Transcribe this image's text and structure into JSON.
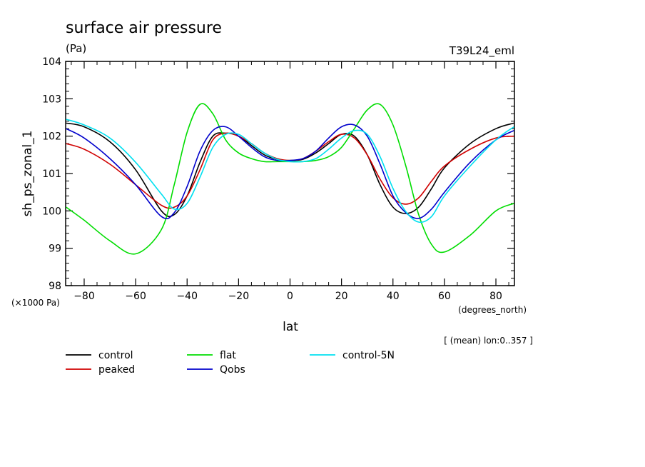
{
  "chart_data": {
    "type": "line",
    "title": "surface air pressure",
    "units_label": "(Pa)",
    "model_label": "T39L24_eml",
    "ylabel": "sh_ps_zonal_1",
    "xlabel": "lat",
    "x_units": "(degrees_north)",
    "y_scale_label": "(×1000 Pa)",
    "mean_note": "[ (mean) lon:0..357 ]",
    "xlim": [
      -87.2,
      87.2
    ],
    "ylim": [
      98,
      104
    ],
    "x_ticks": [
      -80,
      -60,
      -40,
      -20,
      0,
      20,
      40,
      60,
      80
    ],
    "x_tick_labels": [
      "−80",
      "−60",
      "−40",
      "−20",
      "0",
      "20",
      "40",
      "60",
      "80"
    ],
    "y_ticks": [
      98,
      99,
      100,
      101,
      102,
      103,
      104
    ],
    "y_tick_labels": [
      "98",
      "99",
      "100",
      "101",
      "102",
      "103",
      "104"
    ],
    "x": [
      -87,
      -80,
      -70,
      -60,
      -50,
      -45,
      -40,
      -35,
      -30,
      -25,
      -20,
      -15,
      -10,
      -5,
      0,
      5,
      10,
      15,
      20,
      25,
      30,
      35,
      40,
      45,
      50,
      55,
      60,
      70,
      80,
      87
    ],
    "series": [
      {
        "name": "control",
        "color": "#000000",
        "values": [
          102.35,
          102.25,
          101.85,
          101.1,
          100.0,
          99.9,
          100.4,
          101.3,
          102.0,
          102.08,
          102.0,
          101.75,
          101.5,
          101.38,
          101.35,
          101.38,
          101.55,
          101.8,
          102.05,
          102.0,
          101.5,
          100.7,
          100.1,
          99.93,
          100.1,
          100.6,
          101.15,
          101.8,
          102.2,
          102.35
        ]
      },
      {
        "name": "peaked",
        "color": "#d00000",
        "values": [
          101.8,
          101.65,
          101.25,
          100.7,
          100.15,
          100.1,
          100.4,
          101.1,
          101.9,
          102.08,
          102.0,
          101.8,
          101.55,
          101.4,
          101.35,
          101.4,
          101.6,
          101.85,
          102.05,
          101.95,
          101.5,
          100.85,
          100.35,
          100.18,
          100.35,
          100.8,
          101.2,
          101.65,
          101.95,
          102.0
        ]
      },
      {
        "name": "flat",
        "color": "#00dd00",
        "values": [
          100.1,
          99.75,
          99.2,
          98.85,
          99.5,
          100.7,
          102.1,
          102.85,
          102.6,
          101.9,
          101.55,
          101.4,
          101.32,
          101.32,
          101.32,
          101.32,
          101.35,
          101.45,
          101.7,
          102.2,
          102.7,
          102.85,
          102.3,
          101.2,
          99.9,
          99.1,
          98.9,
          99.35,
          100.0,
          100.2
        ]
      },
      {
        "name": "Qobs",
        "color": "#0000cc",
        "values": [
          102.2,
          101.95,
          101.4,
          100.7,
          99.85,
          99.95,
          100.65,
          101.6,
          102.15,
          102.25,
          102.0,
          101.7,
          101.45,
          101.35,
          101.35,
          101.4,
          101.6,
          101.95,
          102.25,
          102.3,
          102.0,
          101.25,
          100.4,
          99.95,
          99.8,
          100.05,
          100.5,
          101.3,
          101.9,
          102.15
        ]
      },
      {
        "name": "control-5N",
        "color": "#00e0f0",
        "values": [
          102.45,
          102.3,
          101.95,
          101.3,
          100.45,
          100.05,
          100.2,
          100.9,
          101.7,
          102.05,
          102.05,
          101.8,
          101.55,
          101.38,
          101.32,
          101.32,
          101.4,
          101.65,
          101.95,
          102.15,
          102.05,
          101.45,
          100.6,
          99.98,
          99.7,
          99.85,
          100.4,
          101.2,
          101.9,
          102.25
        ]
      }
    ],
    "legend_position": "bottom"
  }
}
